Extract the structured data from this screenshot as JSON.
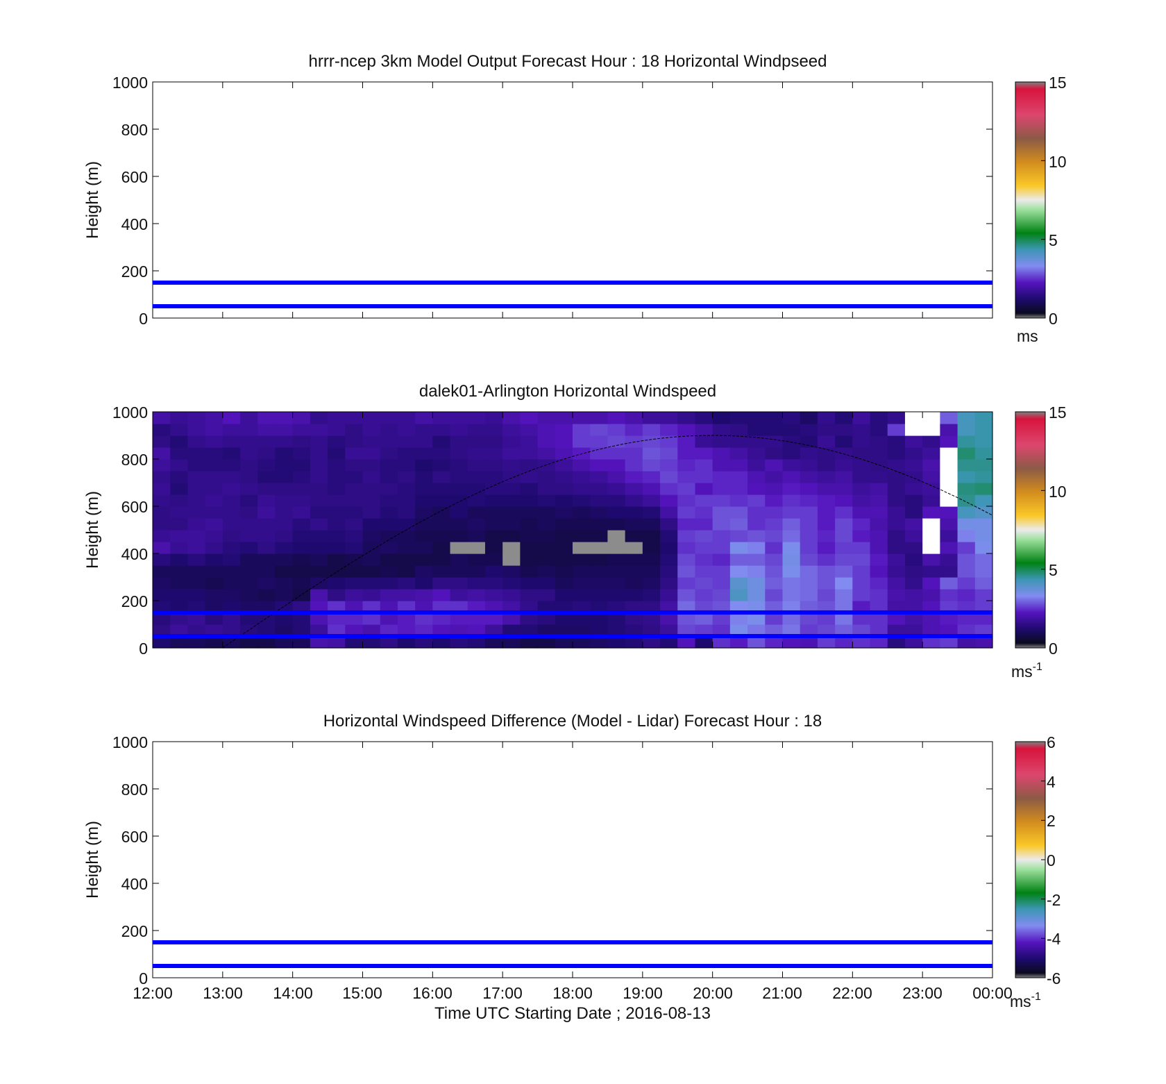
{
  "chart_data": [
    {
      "type": "heatmap",
      "title": "hrrr-ncep 3km Model Output   Forecast Hour : 18 Horizontal Windpseed",
      "ylabel": "Height (m)",
      "ylim": [
        0,
        1000
      ],
      "yticks": [
        "0",
        "200",
        "400",
        "600",
        "800",
        "1000"
      ],
      "xlim": [
        "12:00",
        "00:00"
      ],
      "reference_lines_m": [
        50,
        150
      ],
      "reference_line_color": "#0000ff",
      "cells": [],
      "colorbar": {
        "min": 0,
        "max": 15,
        "ticks": [
          "0",
          "5",
          "10",
          "15"
        ],
        "unit": "ms",
        "unit_sup": ""
      }
    },
    {
      "type": "heatmap",
      "title": "dalek01-Arlington  Horizontal Windspeed",
      "ylabel": "Height (m)",
      "ylim": [
        0,
        1000
      ],
      "yticks": [
        "0",
        "200",
        "400",
        "600",
        "800",
        "1000"
      ],
      "xlim": [
        "12:00",
        "00:00"
      ],
      "reference_lines_m": [
        50,
        150
      ],
      "reference_line_color": "#0000ff",
      "x_times_utc": [
        "12:00",
        "12:15",
        "12:30",
        "12:45",
        "13:00",
        "13:15",
        "13:30",
        "13:45",
        "14:00",
        "14:15",
        "14:30",
        "14:45",
        "15:00",
        "15:15",
        "15:30",
        "15:45",
        "16:00",
        "16:15",
        "16:30",
        "16:45",
        "17:00",
        "17:15",
        "17:30",
        "17:45",
        "18:00",
        "18:15",
        "18:30",
        "18:45",
        "19:00",
        "19:15",
        "19:30",
        "19:45",
        "20:00",
        "20:15",
        "20:30",
        "20:45",
        "21:00",
        "21:15",
        "21:30",
        "21:45",
        "22:00",
        "22:15",
        "22:30",
        "22:45",
        "23:00",
        "23:15",
        "23:30",
        "23:45"
      ],
      "gate_heights_m": [
        0,
        50,
        100,
        150,
        200,
        250,
        300,
        350,
        400,
        450,
        500,
        550,
        600,
        650,
        700,
        750,
        800,
        850,
        900,
        950
      ],
      "windspeed_ms": [
        [
          1.2,
          1.5,
          1.4,
          1.3,
          1.2,
          1.1,
          1.0,
          1.4,
          2.0,
          1.7,
          1.5,
          1.5,
          1.6,
          1.7,
          1.6,
          1.8,
          1.9,
          1.5,
          1.4,
          1.9
        ],
        [
          1.0,
          1.8,
          1.6,
          1.2,
          1.2,
          1.0,
          1.0,
          1.2,
          1.7,
          1.8,
          1.5,
          1.6,
          1.5,
          1.3,
          1.4,
          1.6,
          1.4,
          1.3,
          1.6,
          1.7
        ],
        [
          1.0,
          1.6,
          1.7,
          1.3,
          1.2,
          1.0,
          1.0,
          1.4,
          1.8,
          1.8,
          1.7,
          1.6,
          1.6,
          1.6,
          1.6,
          1.4,
          1.4,
          1.6,
          1.8,
          1.8
        ],
        [
          0.9,
          1.7,
          1.4,
          1.1,
          1.1,
          0.9,
          1.0,
          1.2,
          1.6,
          1.7,
          1.8,
          1.6,
          1.7,
          1.6,
          1.6,
          1.4,
          1.4,
          1.7,
          1.9,
          1.9
        ],
        [
          1.0,
          1.6,
          1.6,
          1.2,
          1.1,
          1.0,
          1.0,
          1.3,
          1.4,
          1.5,
          1.6,
          1.6,
          1.6,
          1.7,
          1.6,
          1.4,
          1.3,
          1.6,
          1.8,
          2.2
        ],
        [
          0.8,
          1.4,
          1.3,
          1.1,
          1.0,
          1.0,
          1.0,
          1.0,
          1.3,
          1.6,
          1.6,
          1.5,
          1.4,
          1.6,
          1.5,
          1.5,
          1.6,
          1.6,
          1.8,
          1.8
        ],
        [
          0.8,
          1.3,
          1.3,
          1.1,
          0.9,
          1.1,
          1.0,
          1.0,
          1.5,
          1.6,
          1.6,
          1.8,
          1.7,
          1.5,
          1.3,
          1.4,
          1.5,
          1.6,
          1.9,
          2.1
        ],
        [
          1.0,
          1.1,
          1.2,
          1.3,
          1.0,
          1.0,
          0.8,
          1.0,
          1.3,
          1.5,
          1.6,
          1.6,
          1.6,
          1.5,
          1.3,
          1.3,
          1.3,
          1.6,
          1.9,
          2.1
        ],
        [
          1.0,
          1.3,
          1.3,
          1.5,
          0.8,
          0.9,
          0.8,
          0.9,
          1.2,
          1.3,
          1.4,
          1.7,
          1.6,
          1.5,
          1.4,
          1.3,
          1.4,
          1.5,
          1.8,
          2.0
        ],
        [
          2.0,
          1.8,
          2.1,
          2.2,
          2.0,
          1.1,
          0.8,
          1.0,
          1.2,
          1.3,
          1.6,
          1.4,
          1.5,
          1.5,
          1.6,
          1.6,
          1.6,
          1.6,
          1.8,
          1.6
        ],
        [
          1.9,
          2.5,
          2.4,
          2.5,
          1.5,
          1.2,
          0.8,
          0.8,
          1.2,
          1.3,
          1.4,
          1.4,
          1.5,
          1.4,
          1.4,
          1.4,
          1.3,
          1.4,
          1.7,
          1.7
        ],
        [
          1.3,
          2.2,
          2.4,
          2.1,
          1.8,
          1.3,
          0.8,
          0.9,
          1.3,
          1.4,
          1.5,
          1.4,
          1.5,
          1.5,
          1.4,
          1.5,
          1.7,
          1.5,
          1.5,
          1.7
        ],
        [
          1.3,
          2.0,
          2.5,
          2.5,
          1.7,
          1.3,
          0.8,
          1.0,
          1.0,
          1.1,
          1.2,
          1.5,
          1.5,
          1.5,
          1.6,
          1.5,
          1.7,
          1.6,
          1.7,
          1.7
        ],
        [
          1.5,
          2.4,
          2.1,
          2.1,
          1.9,
          1.3,
          0.9,
          0.8,
          1.1,
          1.0,
          1.2,
          1.3,
          1.4,
          1.5,
          1.4,
          1.4,
          1.5,
          1.6,
          1.6,
          1.7
        ],
        [
          1.2,
          2.3,
          2.3,
          2.5,
          1.9,
          1.4,
          0.8,
          0.8,
          1.0,
          1.0,
          1.2,
          1.4,
          1.4,
          1.4,
          1.5,
          1.4,
          1.4,
          1.6,
          1.7,
          1.7
        ],
        [
          1.4,
          2.4,
          2.5,
          2.1,
          2.0,
          1.2,
          1.1,
          0.8,
          1.0,
          0.9,
          1.0,
          1.1,
          1.2,
          1.3,
          1.3,
          1.2,
          1.4,
          1.6,
          1.6,
          1.9
        ],
        [
          1.2,
          2.2,
          2.4,
          2.5,
          2.2,
          1.5,
          1.0,
          0.8,
          0.8,
          0.9,
          1.0,
          1.0,
          1.2,
          1.3,
          1.5,
          1.3,
          1.4,
          1.3,
          1.6,
          1.8
        ],
        [
          1.4,
          2.1,
          2.3,
          2.5,
          1.8,
          1.5,
          1.0,
          1.0,
          0.7,
          0.9,
          1.0,
          1.2,
          1.2,
          1.3,
          1.4,
          1.4,
          1.5,
          1.5,
          1.7,
          1.8
        ],
        [
          1.3,
          2.2,
          2.3,
          2.3,
          1.9,
          1.4,
          1.0,
          0.9,
          0.7,
          1.0,
          1.1,
          1.0,
          1.3,
          1.3,
          1.4,
          1.5,
          1.6,
          1.5,
          1.6,
          1.8
        ],
        [
          1.0,
          1.8,
          2.3,
          2.1,
          1.8,
          1.4,
          1.2,
          0.9,
          0.8,
          0.8,
          1.0,
          1.0,
          1.2,
          1.4,
          1.4,
          1.5,
          1.6,
          1.5,
          1.6,
          1.7
        ],
        [
          1.0,
          1.3,
          2.0,
          1.9,
          1.7,
          1.3,
          1.1,
          0.7,
          0.7,
          0.8,
          1.0,
          1.0,
          1.2,
          1.4,
          1.5,
          1.6,
          1.8,
          1.7,
          1.8,
          2.0
        ],
        [
          0.8,
          1.3,
          1.5,
          1.6,
          1.5,
          1.2,
          0.9,
          0.8,
          0.8,
          0.9,
          0.9,
          1.0,
          1.2,
          1.3,
          1.6,
          1.5,
          1.8,
          1.8,
          1.9,
          2.2
        ],
        [
          0.8,
          1.1,
          1.4,
          1.3,
          1.5,
          1.2,
          1.0,
          0.8,
          0.8,
          0.9,
          1.0,
          1.0,
          1.3,
          1.5,
          1.5,
          1.6,
          1.9,
          2.1,
          2.1,
          2.0
        ],
        [
          1.0,
          1.1,
          1.2,
          1.3,
          1.2,
          1.0,
          0.9,
          0.8,
          0.8,
          0.8,
          0.9,
          1.1,
          1.2,
          1.5,
          1.6,
          1.8,
          2.1,
          2.2,
          2.2,
          2.0
        ],
        [
          1.0,
          1.1,
          1.2,
          1.4,
          1.2,
          1.1,
          1.0,
          0.8,
          0.7,
          0.8,
          0.9,
          1.0,
          1.3,
          1.6,
          1.7,
          2.0,
          2.3,
          2.6,
          2.6,
          2.0
        ],
        [
          1.1,
          1.2,
          1.2,
          1.3,
          1.2,
          1.1,
          1.0,
          0.8,
          0.7,
          0.8,
          0.9,
          1.1,
          1.4,
          1.6,
          1.8,
          2.2,
          2.5,
          2.6,
          2.7,
          2.0
        ],
        [
          1.2,
          1.3,
          1.3,
          1.4,
          1.2,
          1.1,
          1.0,
          0.9,
          0.7,
          0.7,
          0.9,
          1.2,
          1.4,
          1.7,
          2.0,
          2.2,
          2.5,
          2.7,
          2.6,
          2.2
        ],
        [
          1.3,
          1.4,
          1.5,
          1.5,
          1.2,
          1.0,
          1.0,
          0.9,
          0.7,
          0.8,
          1.0,
          1.2,
          1.6,
          1.9,
          2.3,
          2.5,
          2.5,
          2.6,
          2.4,
          2.0
        ],
        [
          1.5,
          1.5,
          1.6,
          1.5,
          1.3,
          1.1,
          1.0,
          0.9,
          0.8,
          0.8,
          1.0,
          1.3,
          1.8,
          2.1,
          2.4,
          2.7,
          2.8,
          2.7,
          2.6,
          1.8
        ],
        [
          1.3,
          1.8,
          2.0,
          1.9,
          1.7,
          1.5,
          1.4,
          1.3,
          1.2,
          1.3,
          1.5,
          1.9,
          2.2,
          2.5,
          2.7,
          2.6,
          2.7,
          2.6,
          2.4,
          1.8
        ],
        [
          2.2,
          2.7,
          2.8,
          3.0,
          2.8,
          2.6,
          2.8,
          2.7,
          2.5,
          2.6,
          2.4,
          2.6,
          2.5,
          2.6,
          2.5,
          2.4,
          2.3,
          2.3,
          2.2,
          1.6
        ],
        [
          1.2,
          2.6,
          2.9,
          2.7,
          2.6,
          2.7,
          2.6,
          2.5,
          2.6,
          2.7,
          2.4,
          2.5,
          2.6,
          2.2,
          2.5,
          2.5,
          2.3,
          1.7,
          1.9,
          1.4
        ],
        [
          2.5,
          2.5,
          2.6,
          2.8,
          2.7,
          2.6,
          2.6,
          2.4,
          2.6,
          2.6,
          2.8,
          2.8,
          2.6,
          2.4,
          2.4,
          2.1,
          2.1,
          1.6,
          1.6,
          1.2
        ],
        [
          2.3,
          3.4,
          3.2,
          3.3,
          4.1,
          3.9,
          3.3,
          2.9,
          3.4,
          2.7,
          2.9,
          2.8,
          2.5,
          2.4,
          2.4,
          2.1,
          1.9,
          1.6,
          1.5,
          1.3
        ],
        [
          2.8,
          3.1,
          3.4,
          3.4,
          3.6,
          3.6,
          3.2,
          2.9,
          3.2,
          2.8,
          2.5,
          2.5,
          2.6,
          2.2,
          2.1,
          1.8,
          1.7,
          1.6,
          1.3,
          1.3
        ],
        [
          2.4,
          2.9,
          2.6,
          2.9,
          2.7,
          2.9,
          2.8,
          2.7,
          2.5,
          2.7,
          2.6,
          2.5,
          2.3,
          2.1,
          1.9,
          2.1,
          1.5,
          1.6,
          1.3,
          1.3
        ],
        [
          2.2,
          3.1,
          3.0,
          3.2,
          3.1,
          3.1,
          3.4,
          3.5,
          3.4,
          3.0,
          2.9,
          2.6,
          2.5,
          2.3,
          2.1,
          1.8,
          1.4,
          1.4,
          1.3,
          1.4
        ],
        [
          2.1,
          2.6,
          2.7,
          2.9,
          3.0,
          3.0,
          3.0,
          2.7,
          2.6,
          2.6,
          2.6,
          2.6,
          2.4,
          2.2,
          1.9,
          1.7,
          1.6,
          1.3,
          1.4,
          1.1
        ],
        [
          2.6,
          2.7,
          2.6,
          2.8,
          2.7,
          2.8,
          2.8,
          2.5,
          2.3,
          2.4,
          2.3,
          2.3,
          2.3,
          2.0,
          1.8,
          1.5,
          1.5,
          1.7,
          1.5,
          1.6
        ],
        [
          2.4,
          2.9,
          3.1,
          3.1,
          3.1,
          3.3,
          2.9,
          2.7,
          2.6,
          2.7,
          2.7,
          2.5,
          2.2,
          2.0,
          1.9,
          1.7,
          1.6,
          1.3,
          1.5,
          1.3
        ],
        [
          2.5,
          2.7,
          2.5,
          2.3,
          2.6,
          2.6,
          2.6,
          2.7,
          2.6,
          2.3,
          2.4,
          2.1,
          1.9,
          1.8,
          1.6,
          1.6,
          1.5,
          1.6,
          1.6,
          1.8
        ],
        [
          2.4,
          2.5,
          2.5,
          2.5,
          2.5,
          2.4,
          2.2,
          2.3,
          2.1,
          2.1,
          2.0,
          2.1,
          2.0,
          1.9,
          1.6,
          1.5,
          1.5,
          1.5,
          1.4,
          1.4
        ],
        [
          1.4,
          1.8,
          2.2,
          1.9,
          2.0,
          1.9,
          1.7,
          1.8,
          1.5,
          1.5,
          1.7,
          1.7,
          1.5,
          1.5,
          1.5,
          1.6,
          1.4,
          1.4,
          2.6,
          1.6
        ],
        [
          1.8,
          1.8,
          1.9,
          1.9,
          1.9,
          1.6,
          1.5,
          1.4,
          1.5,
          1.8,
          1.9,
          1.4,
          1.4,
          1.7,
          1.6,
          1.7,
          1.6,
          1.8,
          -1,
          -1
        ],
        [
          2.5,
          2.1,
          2.1,
          2.2,
          2.0,
          2.2,
          1.6,
          2.0,
          -1,
          -1,
          -1,
          2.2,
          1.7,
          1.8,
          1.9,
          2.0,
          1.8,
          1.6,
          -1,
          -1
        ],
        [
          2.6,
          2.2,
          2.3,
          2.6,
          2.5,
          2.9,
          1.6,
          1.7,
          2.1,
          1.8,
          2.0,
          2.2,
          -1,
          -1,
          -1,
          -1,
          -1,
          2.2,
          2.0,
          2.9
        ],
        [
          1.9,
          2.5,
          2.4,
          2.5,
          2.4,
          2.6,
          2.8,
          2.8,
          2.6,
          3.2,
          3.5,
          4.2,
          4.6,
          4.7,
          4.4,
          4.6,
          4.8,
          4.5,
          4.2,
          4.2
        ],
        [
          2.0,
          2.6,
          2.4,
          2.6,
          2.6,
          2.9,
          3.0,
          3.0,
          3.4,
          3.5,
          3.5,
          4.0,
          4.3,
          4.8,
          4.5,
          4.6,
          4.5,
          4.4,
          4.4,
          4.4
        ]
      ],
      "null_value": -1,
      "overlay_curve": {
        "peak_time": "20:00",
        "peak_height_m": 900,
        "color": "#000000"
      },
      "colorbar": {
        "min": 0,
        "max": 15,
        "ticks": [
          "0",
          "5",
          "10",
          "15"
        ],
        "unit": "ms",
        "unit_sup": "-1"
      }
    },
    {
      "type": "heatmap",
      "title": "Horizontal Windspeed Difference (Model - Lidar) Forecast Hour : 18",
      "ylabel": "Height (m)",
      "xlabel": "Time UTC  Starting Date ; 2016-08-13",
      "ylim": [
        0,
        1000
      ],
      "yticks": [
        "0",
        "200",
        "400",
        "600",
        "800",
        "1000"
      ],
      "xticks": [
        "12:00",
        "13:00",
        "14:00",
        "15:00",
        "16:00",
        "17:00",
        "18:00",
        "19:00",
        "20:00",
        "21:00",
        "22:00",
        "23:00",
        "00:00"
      ],
      "reference_lines_m": [
        50,
        150
      ],
      "reference_line_color": "#0000ff",
      "cells": [],
      "colorbar": {
        "min": -6,
        "max": 6,
        "ticks": [
          "-6",
          "-4",
          "-2",
          "0",
          "2",
          "4",
          "6"
        ],
        "unit": "ms",
        "unit_sup": "-1"
      }
    }
  ]
}
